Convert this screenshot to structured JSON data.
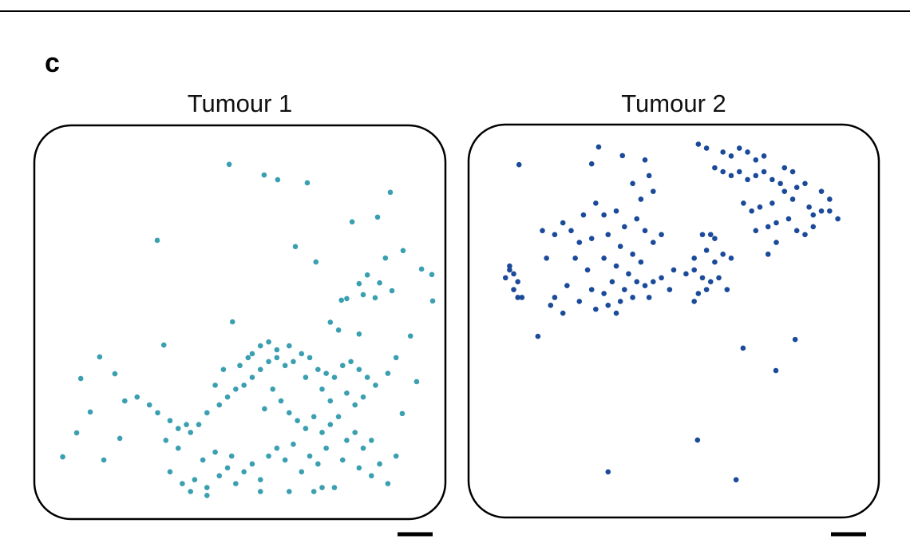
{
  "panel_label": "c",
  "chart_data": [
    {
      "type": "scatter",
      "title": "Tumour 1",
      "color": "#3a9fb0",
      "xlim": [
        0,
        100
      ],
      "ylim": [
        0,
        100
      ],
      "x": [
        47.4,
        55.9,
        59.2,
        66.4,
        86.6,
        83.5,
        77.3,
        29.9,
        63.5,
        68.5,
        89.7,
        85.4,
        96.7,
        94.2,
        96.9,
        82.9,
        79.0,
        74.7,
        81,
        84,
        87,
        80,
        76,
        72,
        74,
        79,
        48.2,
        31.5,
        91.5,
        15.9,
        11.3,
        19.6,
        10.3,
        6.9,
        13.6,
        16.9,
        20.8,
        93.0,
        89.5,
        86,
        88,
        22,
        25,
        28,
        30,
        33,
        35,
        37,
        40,
        42,
        45,
        47,
        49,
        51,
        53,
        55,
        57,
        59,
        61,
        63,
        65,
        67,
        69,
        71,
        73,
        75,
        77,
        79,
        81,
        83,
        53,
        55,
        57,
        59,
        62,
        66,
        70,
        72,
        76,
        78,
        80,
        44,
        46,
        50,
        52,
        32,
        35,
        38,
        60,
        62,
        64,
        66,
        68,
        70,
        72,
        74,
        76,
        78,
        80,
        82,
        58,
        56,
        33,
        36,
        39,
        42,
        45,
        47,
        49,
        51,
        53,
        55,
        57,
        59,
        61,
        63,
        65,
        67,
        69,
        71,
        75,
        79,
        82,
        84,
        86,
        88,
        41,
        44,
        48,
        62,
        68,
        70,
        73,
        55,
        38,
        42
      ],
      "y": [
        90.1,
        87.4,
        86.2,
        85.4,
        83.0,
        76.7,
        75.5,
        70.8,
        69.2,
        65.3,
        68.2,
        66.3,
        62.1,
        63.5,
        55.4,
        56.2,
        59.8,
        55.6,
        62,
        60,
        58,
        57,
        56,
        50,
        48,
        47,
        50.1,
        44.2,
        46.5,
        41.2,
        35.7,
        36.9,
        21.9,
        15.8,
        27.2,
        15.0,
        20.5,
        34.9,
        26.8,
        37,
        41,
        30,
        31,
        29,
        27,
        25,
        23,
        24,
        24,
        27,
        29,
        31,
        33,
        34,
        36,
        38,
        40,
        41,
        39,
        40,
        42,
        41,
        38,
        37,
        36,
        39,
        40,
        38,
        36,
        34,
        42,
        44,
        45,
        43,
        44,
        36,
        33,
        30,
        32,
        29,
        31,
        34,
        38,
        39,
        41,
        20,
        18,
        22,
        30,
        27,
        25,
        23,
        26,
        22,
        24,
        26,
        20,
        22,
        18,
        20,
        33,
        28,
        12,
        9,
        10,
        8,
        11,
        13,
        9,
        12,
        14,
        10,
        16,
        18,
        15,
        19,
        12,
        16,
        14,
        18,
        15,
        13,
        11,
        14,
        9,
        16,
        15,
        17,
        16,
        7,
        7,
        8,
        8,
        7,
        7,
        6
      ]
    },
    {
      "type": "scatter",
      "title": "Tumour 2",
      "color": "#1b4a9a",
      "xlim": [
        0,
        100
      ],
      "ylim": [
        0,
        100
      ],
      "x": [
        12.3,
        16.9,
        66.9,
        79.6,
        74.9,
        55.8,
        34.0,
        65.2,
        31.7,
        37.5,
        43,
        30,
        45,
        62,
        64,
        66,
        68,
        70,
        72,
        60,
        62,
        64,
        66,
        68,
        70,
        72,
        74,
        76,
        77,
        79,
        77,
        80,
        82,
        79,
        83,
        84,
        86,
        88,
        86,
        88,
        90,
        74,
        71,
        69,
        67,
        75,
        73,
        78,
        80,
        82,
        84,
        70,
        75,
        73,
        56,
        58,
        28,
        31,
        33,
        36,
        23,
        25,
        21,
        18,
        27,
        30,
        34,
        38,
        41,
        43,
        45,
        47,
        37,
        40,
        42,
        33,
        36,
        39,
        41,
        43,
        45,
        47,
        35,
        38,
        40,
        37,
        33,
        30,
        27,
        31,
        34,
        36,
        44,
        49,
        24,
        26,
        29,
        19,
        21,
        20,
        23,
        42,
        40,
        44,
        9,
        10,
        11,
        12,
        11,
        12,
        13,
        10,
        55,
        57,
        59,
        61,
        58,
        56,
        60,
        62,
        64,
        58,
        55,
        53,
        57,
        59,
        55,
        63,
        60,
        50
      ],
      "y": [
        89.8,
        46.1,
        43.1,
        45.3,
        37.4,
        19.7,
        11.6,
        9.6,
        94.3,
        92.1,
        91,
        90,
        83,
        93,
        92,
        94,
        93,
        91,
        92,
        89,
        88,
        87,
        88,
        86,
        87,
        88,
        86,
        85,
        89,
        88,
        83,
        84,
        85,
        81,
        79,
        77,
        83,
        81,
        78,
        78,
        76,
        80,
        79,
        78,
        80,
        75,
        74,
        76,
        73,
        72,
        74,
        73,
        70,
        67,
        95,
        94,
        77,
        80,
        77,
        78,
        75,
        73,
        72,
        73,
        70,
        71,
        72,
        74,
        76,
        73,
        70,
        72,
        69,
        67,
        65,
        66,
        64,
        62,
        60,
        59,
        60,
        61,
        60,
        58,
        56,
        55,
        57,
        58,
        55,
        53,
        54,
        52,
        56,
        58,
        59,
        66,
        63,
        66,
        56,
        54,
        52,
        81,
        85,
        87,
        61,
        63,
        62,
        60,
        58,
        56,
        56,
        64,
        63,
        61,
        60,
        61,
        58,
        57,
        65,
        67,
        66,
        68,
        66,
        62,
        72,
        72,
        55,
        58,
        71,
        63
      ]
    }
  ]
}
